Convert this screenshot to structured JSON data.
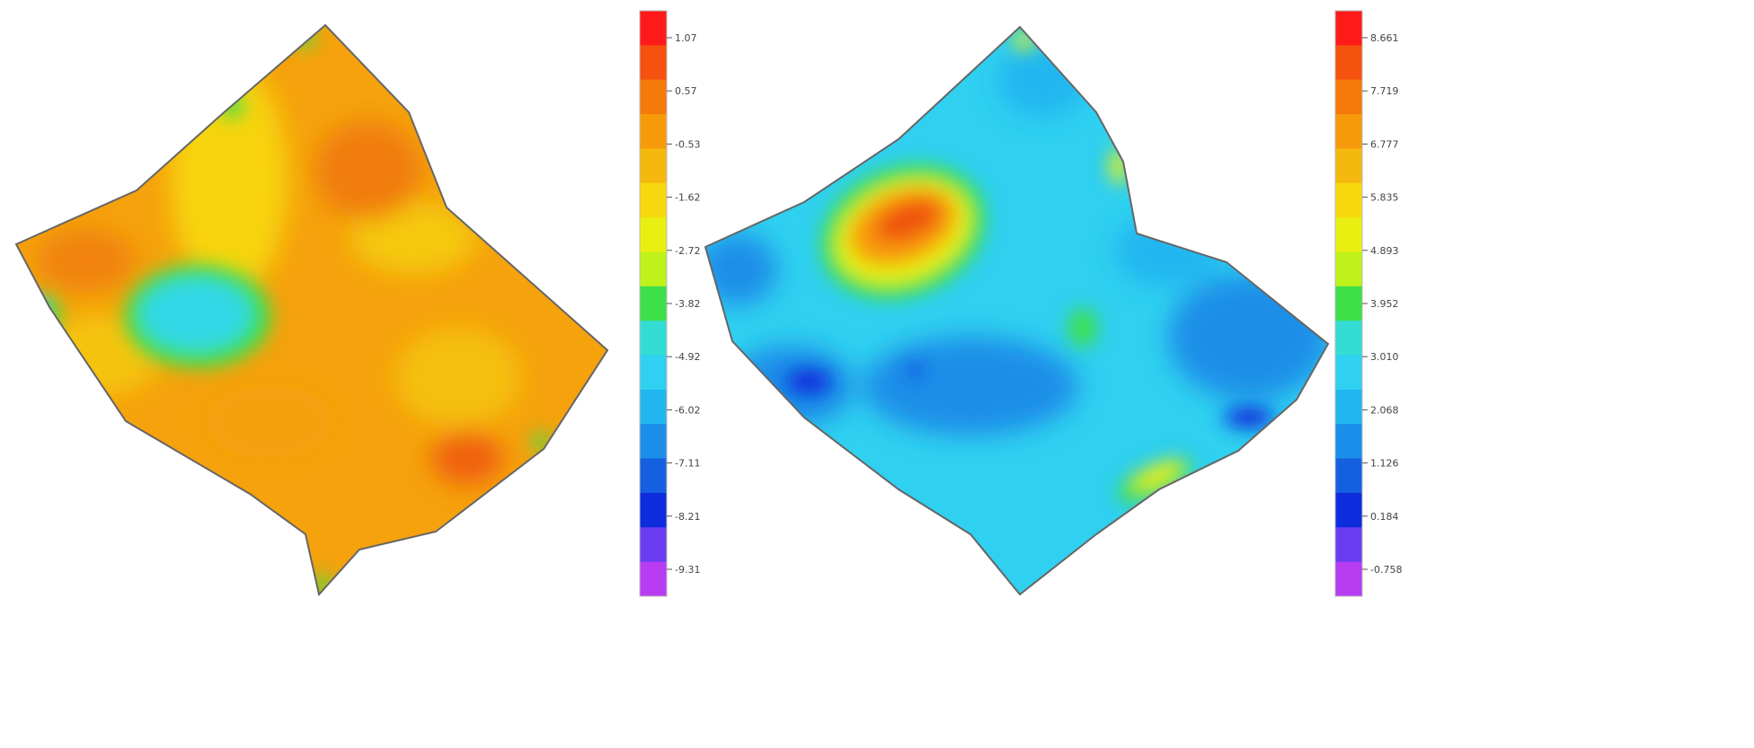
{
  "chart_data": [
    {
      "type": "heatmap",
      "title": "",
      "xlabel": "",
      "ylabel": "",
      "colorbar": {
        "tick_labels": [
          "1.07",
          "0.57",
          "-0.53",
          "-1.62",
          "-2.72",
          "-3.82",
          "-4.92",
          "-6.02",
          "-7.11",
          "-8.21",
          "-9.31"
        ],
        "colors": [
          "#ff1a1a",
          "#f5520f",
          "#f57a0a",
          "#f79a0a",
          "#f5b80e",
          "#f7d80e",
          "#e9ef10",
          "#bff21a",
          "#3ee04a",
          "#33ddd4",
          "#2fd0f0",
          "#22b6f0",
          "#1a8ee8",
          "#1560e0",
          "#0d2ddd",
          "#6a3ef0",
          "#b73cf2"
        ]
      },
      "field": {
        "background_level": 3,
        "regions": [
          {
            "level": 4,
            "description_level": "yellow-orange"
          },
          {
            "level": 5
          },
          {
            "level": 1
          },
          {
            "level": 10
          },
          {
            "level": 8
          }
        ]
      }
    },
    {
      "type": "heatmap",
      "title": "",
      "xlabel": "",
      "ylabel": "",
      "colorbar": {
        "tick_labels": [
          "8.661",
          "7.719",
          "6.777",
          "5.835",
          "4.893",
          "3.952",
          "3.010",
          "2.068",
          "1.126",
          "0.184",
          "-0.758"
        ],
        "colors": [
          "#ff1a1a",
          "#f5520f",
          "#f57a0a",
          "#f79a0a",
          "#f5b80e",
          "#f7d80e",
          "#e9ef10",
          "#bff21a",
          "#3ee04a",
          "#33ddd4",
          "#2fd0f0",
          "#22b6f0",
          "#1a8ee8",
          "#1560e0",
          "#0d2ddd",
          "#6a3ef0",
          "#b73cf2"
        ]
      },
      "field": {
        "background_level": 11,
        "regions": [
          {
            "level": 8
          },
          {
            "level": 2
          },
          {
            "level": 13
          },
          {
            "level": 14
          }
        ]
      }
    }
  ]
}
